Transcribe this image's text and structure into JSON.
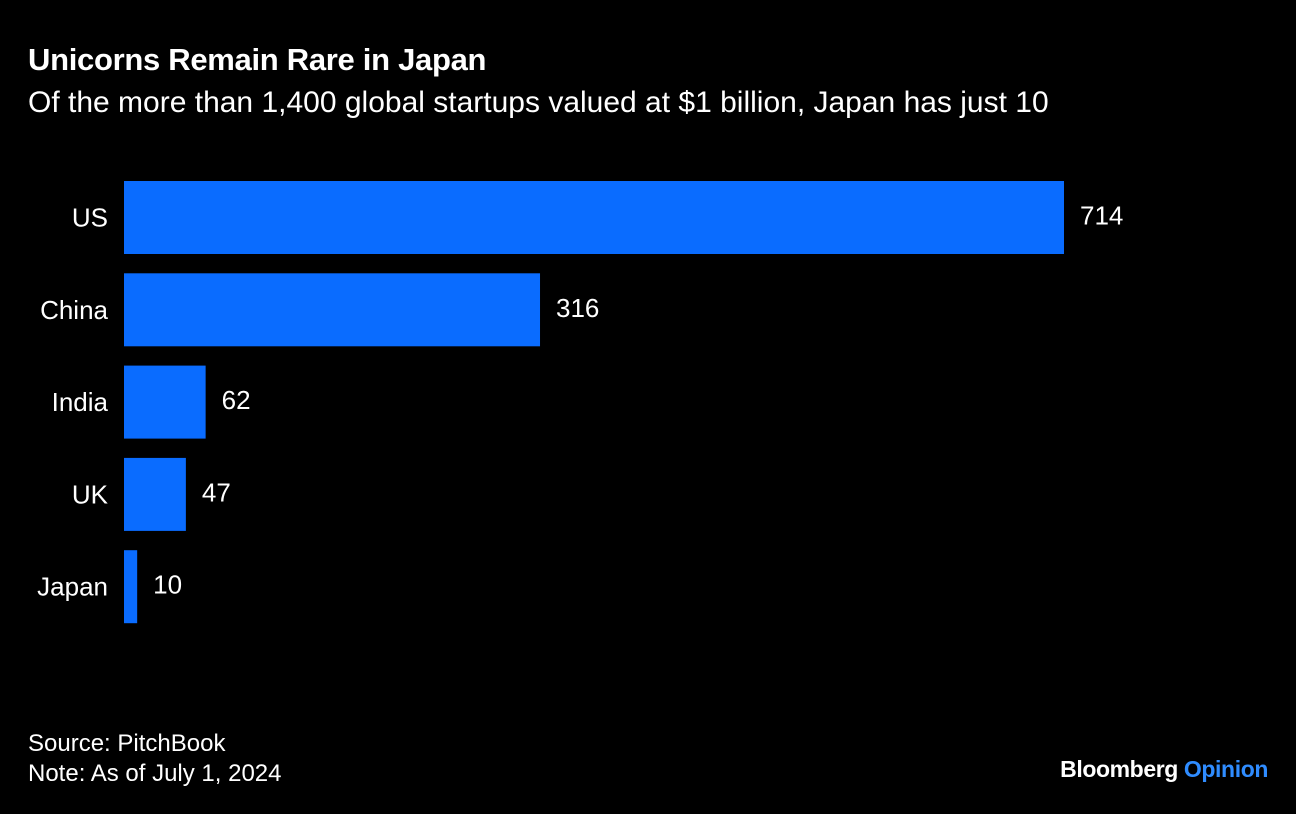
{
  "header": {
    "title": "Unicorns Remain Rare in Japan",
    "subtitle": "Of the more than 1,400 global startups valued at $1 billion, Japan has just 10"
  },
  "footer": {
    "source": "Source: PitchBook",
    "note": "Note: As of July 1, 2024"
  },
  "brand": {
    "name": "Bloomberg",
    "section": "Opinion"
  },
  "colors": {
    "background": "#000000",
    "bar": "#0a6cff",
    "text": "#ffffff",
    "brand_accent": "#2f8cff"
  },
  "chart_data": {
    "type": "bar",
    "orientation": "horizontal",
    "categories": [
      "US",
      "China",
      "India",
      "UK",
      "Japan"
    ],
    "values": [
      714,
      316,
      62,
      47,
      10
    ],
    "title": "Unicorns Remain Rare in Japan",
    "subtitle": "Of the more than 1,400 global startups valued at $1 billion, Japan has just 10",
    "data_labels": true,
    "grid": false,
    "legend": "none"
  }
}
